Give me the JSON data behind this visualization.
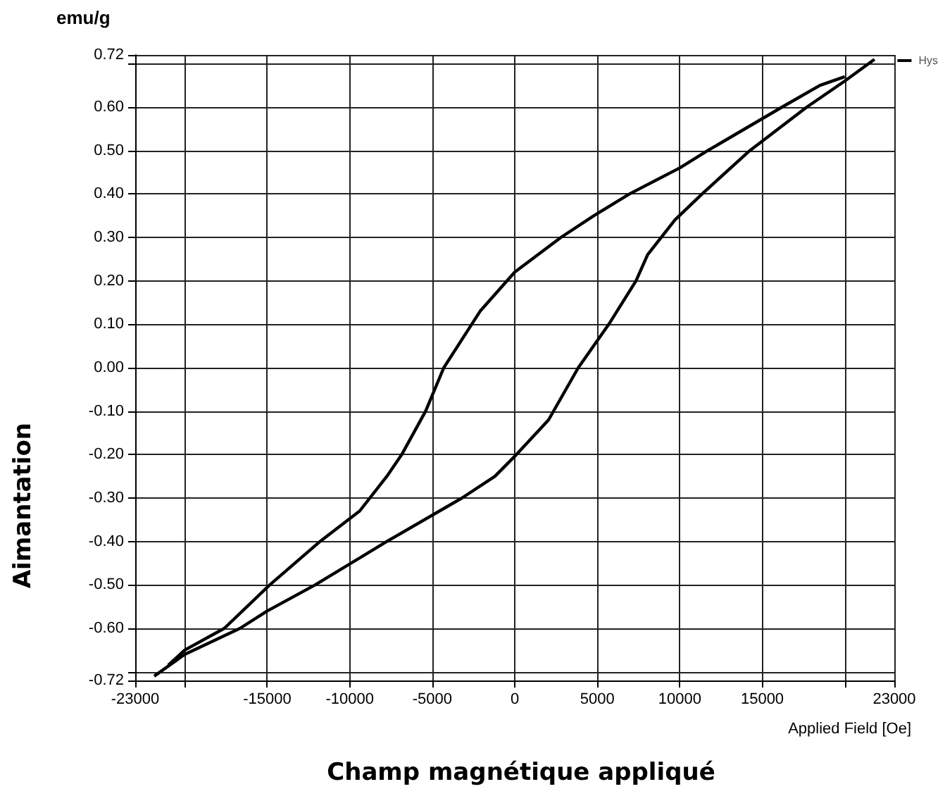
{
  "chart_data": {
    "type": "line",
    "xlabel": "Champ magnétique appliqué",
    "ylabel": "Aimantation",
    "annotations": [
      "emu/g",
      "Applied Field [Oe]"
    ],
    "series": [
      {
        "name": "Hys",
        "color": "#000000",
        "x": [
          -21850,
          -20000,
          -16650,
          -15000,
          -12100,
          -7750,
          -3200,
          -1200,
          100,
          2050,
          3850,
          5700,
          7350,
          8050,
          9700,
          11350,
          14250,
          17700,
          20000,
          21800
        ],
        "values": [
          -0.71,
          -0.66,
          -0.6,
          -0.56,
          -0.5,
          -0.4,
          -0.3,
          -0.25,
          -0.2,
          -0.12,
          0.0,
          0.1,
          0.2,
          0.26,
          0.34,
          0.4,
          0.5,
          0.6,
          0.66,
          0.71
        ]
      },
      {
        "color": "#000000",
        "x": [
          -21000,
          -20000,
          -17600,
          -14850,
          -11800,
          -9400,
          -7750,
          -6850,
          -5400,
          -4300,
          -2100,
          0,
          2800,
          4800,
          6950,
          10000,
          11700,
          16200,
          18500,
          20000
        ],
        "values": [
          -0.685,
          -0.65,
          -0.6,
          -0.5,
          -0.4,
          -0.33,
          -0.25,
          -0.2,
          -0.1,
          0.0,
          0.13,
          0.22,
          0.3,
          0.35,
          0.4,
          0.46,
          0.5,
          0.6,
          0.65,
          0.67
        ]
      }
    ],
    "xlim": [
      -23000,
      23000
    ],
    "xticks": [
      -23000,
      {
        "value": -20000,
        "label": null
      },
      -15000,
      -10000,
      -5000,
      0,
      5000,
      10000,
      15000,
      {
        "value": 20000,
        "label": null
      },
      23000
    ],
    "ylim": [
      -0.72,
      0.72
    ],
    "yticks": [
      -0.72,
      {
        "value": -0.7,
        "label": null
      },
      {
        "value": -0.6,
        "label": "-0.60"
      },
      {
        "value": -0.5,
        "label": "-0.50"
      },
      {
        "value": -0.4,
        "label": "-0.40"
      },
      {
        "value": -0.3,
        "label": "-0.30"
      },
      {
        "value": -0.2,
        "label": "-0.20"
      },
      {
        "value": -0.1,
        "label": "-0.10"
      },
      {
        "value": 0,
        "label": "0.00"
      },
      {
        "value": 0.1,
        "label": "0.10"
      },
      {
        "value": 0.2,
        "label": "0.20"
      },
      {
        "value": 0.3,
        "label": "0.30"
      },
      {
        "value": 0.4,
        "label": "0.40"
      },
      {
        "value": 0.5,
        "label": "0.50"
      },
      {
        "value": 0.6,
        "label": "0.60"
      },
      {
        "value": 0.7,
        "label": null
      },
      0.72
    ],
    "grid": true,
    "legend": "top right",
    "marker": "none",
    "line_style": "solid"
  }
}
